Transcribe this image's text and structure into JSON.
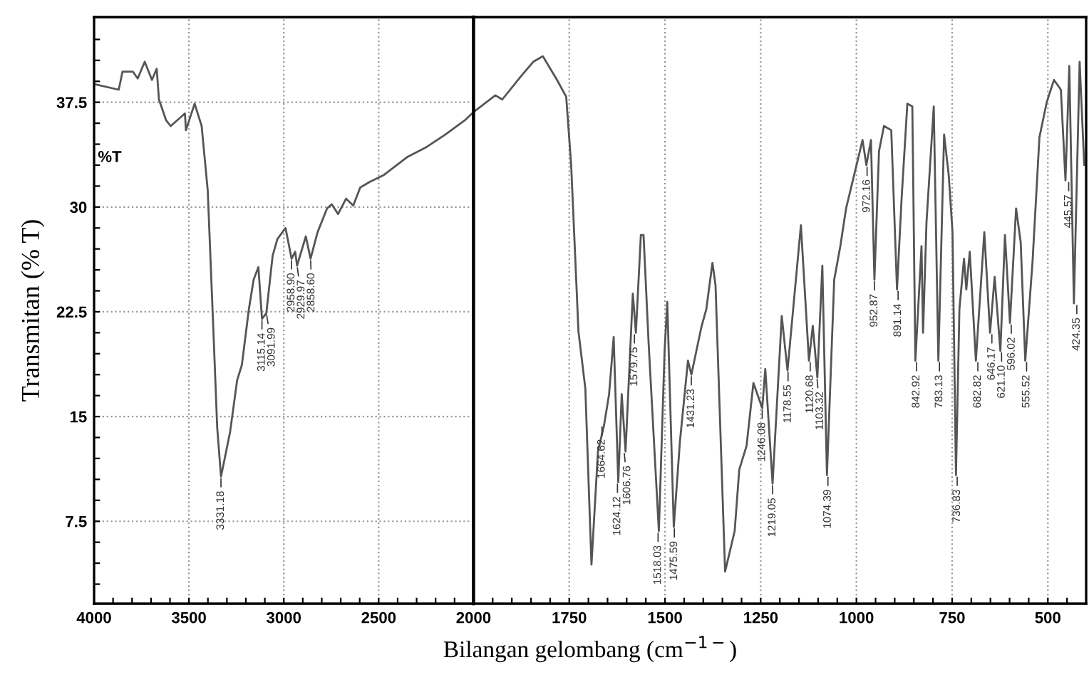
{
  "chart_data": [
    {
      "type": "line",
      "ylabel": "Transmitan (% T)",
      "xlabel": "Bilangan gelombang (cm$^{−1−}$)",
      "x": [
        4000,
        3870,
        3850,
        3796,
        3770,
        3733,
        3695,
        3670,
        3658,
        3620,
        3596,
        3521,
        3516,
        3470,
        3433,
        3401,
        3371,
        3351,
        3331,
        3283,
        3246,
        3221,
        3184,
        3159,
        3134,
        3115,
        3092,
        3059,
        3034,
        2991,
        2959,
        2940,
        2930,
        2884,
        2859,
        2822,
        2772,
        2747,
        2714,
        2672,
        2634,
        2597,
        2547,
        2472,
        2347,
        2247,
        2148,
        2047,
        2000
      ],
      "values": [
        38.8,
        38.4,
        39.7,
        39.7,
        39.2,
        40.4,
        39.1,
        39.9,
        37.7,
        36.2,
        35.8,
        36.7,
        35.5,
        37.4,
        35.8,
        31.2,
        21.1,
        14.2,
        10.7,
        13.9,
        17.6,
        18.7,
        22.7,
        24.8,
        25.7,
        22.0,
        22.4,
        26.5,
        27.7,
        28.5,
        26.3,
        26.8,
        25.8,
        27.9,
        26.3,
        28.2,
        29.9,
        30.2,
        29.5,
        30.6,
        30.1,
        31.4,
        31.8,
        32.3,
        33.6,
        34.3,
        35.2,
        36.2,
        36.8
      ],
      "color": "#555555",
      "line_style": "solid",
      "grid": true,
      "xlim": [
        4000,
        2000
      ],
      "xticks": [
        4000,
        {
          "value": 3900,
          "label": null
        },
        {
          "value": 3800,
          "label": null
        },
        {
          "value": 3700,
          "label": null
        },
        {
          "value": 3600,
          "label": null
        },
        3500,
        {
          "value": 3400,
          "label": null
        },
        {
          "value": 3300,
          "label": null
        },
        {
          "value": 3200,
          "label": null
        },
        {
          "value": 3100,
          "label": null
        },
        3000,
        {
          "value": 2900,
          "label": null
        },
        {
          "value": 2800,
          "label": null
        },
        {
          "value": 2700,
          "label": null
        },
        {
          "value": 2600,
          "label": null
        },
        2500,
        {
          "value": 2400,
          "label": null
        },
        {
          "value": 2300,
          "label": null
        },
        {
          "value": 2200,
          "label": null
        },
        {
          "value": 2100,
          "label": null
        },
        2000
      ],
      "ylim": [
        1.6,
        43.6
      ],
      "yticks": [
        {
          "value": 3,
          "label": null
        },
        {
          "value": 4.5,
          "label": null
        },
        {
          "value": 6,
          "label": null
        },
        7.5,
        {
          "value": 9,
          "label": null
        },
        {
          "value": 10.5,
          "label": null
        },
        {
          "value": 12,
          "label": null
        },
        {
          "value": 13.5,
          "label": null
        },
        15,
        {
          "value": 16.5,
          "label": null
        },
        {
          "value": 18,
          "label": null
        },
        {
          "value": 19.5,
          "label": null
        },
        {
          "value": 21,
          "label": null
        },
        22.5,
        {
          "value": 24,
          "label": null
        },
        {
          "value": 25.5,
          "label": null
        },
        {
          "value": 27,
          "label": null
        },
        {
          "value": 28.5,
          "label": null
        },
        30,
        {
          "value": 31.5,
          "label": null
        },
        {
          "value": 33,
          "label": null
        },
        {
          "value": 34.5,
          "label": null
        },
        {
          "value": 36,
          "label": null
        },
        37.5,
        {
          "value": 39,
          "label": null
        },
        {
          "value": 40.5,
          "label": null
        },
        {
          "value": 42,
          "label": null
        }
      ],
      "annotations": [
        "%T",
        {
          "text": "3331.18",
          "x": 3331.18,
          "y": 10.7
        },
        {
          "text": "3115.14",
          "x": 3115.14,
          "y": 22.0
        },
        {
          "text": "3091.99",
          "x": 3091.99,
          "y": 22.4
        },
        {
          "text": "2958.90",
          "x": 2958.9,
          "y": 26.3
        },
        {
          "text": "2929.97",
          "x": 2929.97,
          "y": 25.8
        },
        {
          "text": "2858.60",
          "x": 2858.6,
          "y": 26.3
        }
      ]
    },
    {
      "type": "line",
      "tick_labels": "x",
      "x": [
        2000,
        1943,
        1925,
        1875,
        1844,
        1819,
        1782,
        1758,
        1745,
        1726,
        1708,
        1692,
        1675,
        1659,
        1646,
        1634,
        1622,
        1613,
        1603,
        1584,
        1576,
        1563,
        1556,
        1543,
        1516,
        1501,
        1494,
        1477,
        1461,
        1440,
        1431,
        1405,
        1392,
        1376,
        1368,
        1343,
        1318,
        1306,
        1287,
        1269,
        1246,
        1238,
        1219,
        1195,
        1180,
        1145,
        1124,
        1114,
        1102,
        1089,
        1077,
        1058,
        1042,
        1027,
        984,
        974,
        962,
        953,
        941,
        928,
        909,
        894,
        882,
        867,
        854,
        846,
        830,
        826,
        817,
        798,
        786,
        771,
        759,
        749,
        740,
        731,
        719,
        713,
        704,
        688,
        666,
        651,
        639,
        624,
        612,
        599,
        583,
        571,
        559,
        540,
        522,
        503,
        484,
        466,
        454,
        444,
        432,
        417,
        405
      ],
      "values": [
        36.8,
        38.0,
        37.7,
        39.4,
        40.4,
        40.8,
        39.1,
        37.9,
        33.0,
        21.1,
        17.0,
        4.4,
        12.5,
        14.4,
        16.6,
        20.7,
        10.3,
        16.6,
        12.5,
        23.8,
        21.0,
        28.0,
        28.0,
        20.4,
        6.8,
        19.7,
        23.2,
        7.1,
        13.2,
        19.0,
        18.0,
        21.4,
        22.7,
        26.0,
        24.4,
        3.9,
        6.8,
        11.2,
        12.9,
        17.4,
        15.6,
        18.4,
        10.2,
        22.2,
        18.3,
        28.7,
        19.0,
        21.5,
        17.8,
        25.8,
        10.8,
        24.8,
        27.2,
        29.9,
        34.8,
        33.0,
        34.8,
        24.8,
        34.0,
        35.8,
        35.5,
        24.1,
        30.6,
        37.4,
        37.2,
        19.0,
        27.2,
        21.0,
        28.9,
        37.2,
        19.0,
        35.2,
        32.3,
        28.2,
        10.8,
        22.7,
        26.3,
        24.1,
        26.8,
        19.0,
        28.2,
        21.0,
        25.0,
        19.7,
        28.0,
        21.7,
        29.9,
        27.5,
        19.0,
        26.1,
        35.0,
        37.5,
        39.1,
        38.4,
        31.9,
        40.1,
        23.1,
        40.4,
        33.0
      ],
      "color": "#555555",
      "line_style": "solid",
      "grid": true,
      "xlim": [
        2000,
        400
      ],
      "xticks": [
        {
          "value": 1950,
          "label": null
        },
        {
          "value": 1900,
          "label": null
        },
        {
          "value": 1850,
          "label": null
        },
        {
          "value": 1800,
          "label": null
        },
        1750,
        {
          "value": 1700,
          "label": null
        },
        {
          "value": 1650,
          "label": null
        },
        {
          "value": 1600,
          "label": null
        },
        {
          "value": 1550,
          "label": null
        },
        1500,
        {
          "value": 1450,
          "label": null
        },
        {
          "value": 1400,
          "label": null
        },
        {
          "value": 1350,
          "label": null
        },
        {
          "value": 1300,
          "label": null
        },
        1250,
        {
          "value": 1200,
          "label": null
        },
        {
          "value": 1150,
          "label": null
        },
        {
          "value": 1100,
          "label": null
        },
        {
          "value": 1050,
          "label": null
        },
        1000,
        {
          "value": 950,
          "label": null
        },
        {
          "value": 900,
          "label": null
        },
        {
          "value": 850,
          "label": null
        },
        {
          "value": 800,
          "label": null
        },
        750,
        {
          "value": 700,
          "label": null
        },
        {
          "value": 650,
          "label": null
        },
        {
          "value": 600,
          "label": null
        },
        {
          "value": 550,
          "label": null
        },
        500,
        {
          "value": 450,
          "label": null
        }
      ],
      "ylim": [
        1.6,
        43.6
      ],
      "annotations": [
        {
          "text": "1664.62",
          "x": 1664.62,
          "y": 14.4
        },
        {
          "text": "1624.12",
          "x": 1624.12,
          "y": 10.3
        },
        {
          "text": "1606.76",
          "x": 1606.76,
          "y": 12.5
        },
        {
          "text": "1579.75",
          "x": 1579.75,
          "y": 21.0
        },
        {
          "text": "1518.03",
          "x": 1518.03,
          "y": 6.8
        },
        {
          "text": "1475.59",
          "x": 1475.59,
          "y": 7.1
        },
        {
          "text": "1431.23",
          "x": 1431.23,
          "y": 18.0
        },
        {
          "text": "1246.08",
          "x": 1246.08,
          "y": 15.6
        },
        {
          "text": "1219.05",
          "x": 1219.05,
          "y": 10.2
        },
        {
          "text": "1178.55",
          "x": 1178.55,
          "y": 18.3
        },
        {
          "text": "1120.68",
          "x": 1120.68,
          "y": 19.0
        },
        {
          "text": "1103.32",
          "x": 1103.32,
          "y": 17.8
        },
        {
          "text": "1074.39",
          "x": 1074.39,
          "y": 10.8
        },
        {
          "text": "972.16",
          "x": 972.16,
          "y": 33.0
        },
        {
          "text": "952.87",
          "x": 952.87,
          "y": 24.8
        },
        {
          "text": "891.14",
          "x": 891.14,
          "y": 24.1
        },
        {
          "text": "842.92",
          "x": 842.92,
          "y": 19.0
        },
        {
          "text": "783.13",
          "x": 783.13,
          "y": 19.0
        },
        {
          "text": "736.83",
          "x": 736.83,
          "y": 10.8
        },
        {
          "text": "682.82",
          "x": 682.82,
          "y": 19.0
        },
        {
          "text": "646.17",
          "x": 646.17,
          "y": 21.0
        },
        {
          "text": "621.10",
          "x": 621.1,
          "y": 19.7
        },
        {
          "text": "596.02",
          "x": 596.02,
          "y": 21.7
        },
        {
          "text": "555.52",
          "x": 555.52,
          "y": 19.0
        },
        {
          "text": "445.57",
          "x": 445.57,
          "y": 31.9
        },
        {
          "text": "424.35",
          "x": 424.35,
          "y": 23.1
        }
      ]
    }
  ]
}
